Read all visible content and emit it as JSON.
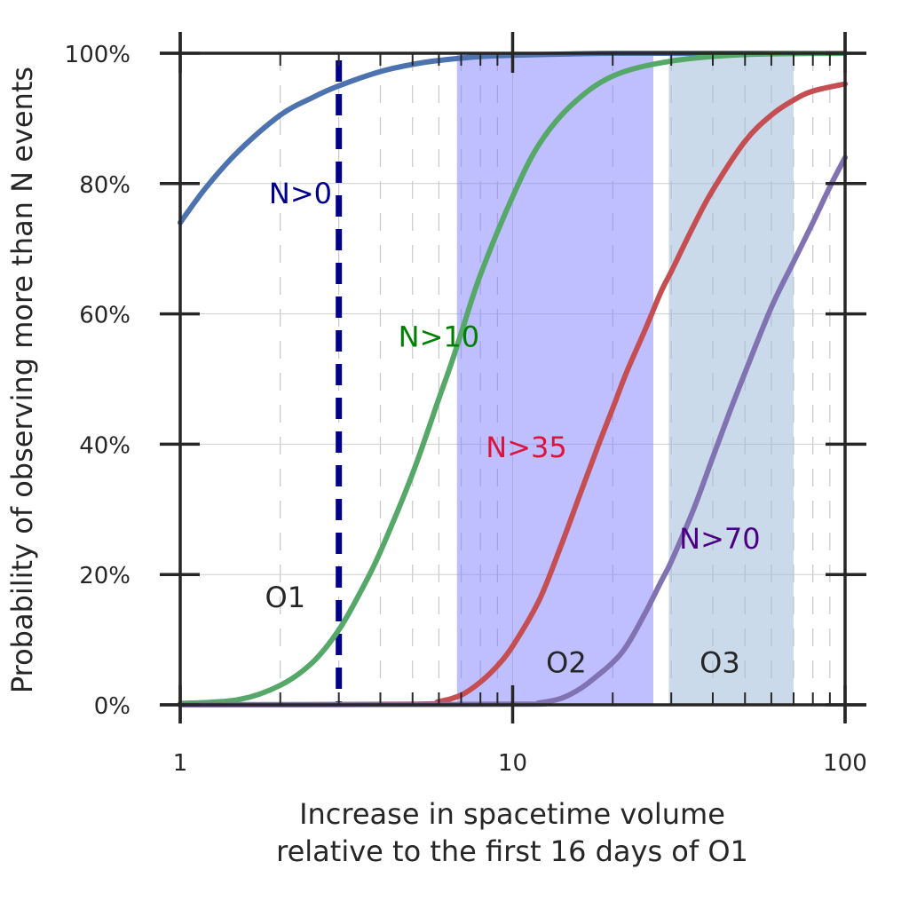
{
  "chart_data": {
    "type": "line",
    "xscale": "log",
    "xlim": [
      1,
      100
    ],
    "ylim": [
      0,
      100
    ],
    "xticks": [
      1,
      10,
      100
    ],
    "xtick_labels": [
      "1",
      "10",
      "100"
    ],
    "yticks": [
      0,
      20,
      40,
      60,
      80,
      100
    ],
    "ytick_labels": [
      "0%",
      "20%",
      "40%",
      "60%",
      "80%",
      "100%"
    ],
    "xlabel_line1": "Increase in spacetime volume",
    "xlabel_line2": "relative to the first 16 days of O1",
    "ylabel": "Probability of observing more than N events",
    "grid": "horizontal major lines, dashed vertical minor lines",
    "series": [
      {
        "name": "N>0",
        "color": "#4c72b0",
        "label_color": "#00008b",
        "label_at": [
          2.3,
          77
        ],
        "x": [
          1,
          1.2,
          1.5,
          2,
          2.5,
          3,
          4,
          5,
          6,
          8,
          10,
          15,
          20,
          30,
          50,
          100
        ],
        "y": [
          74,
          79.5,
          85,
          90.5,
          93.2,
          95,
          97.2,
          98.3,
          98.9,
          99.5,
          99.7,
          99.9,
          100,
          100,
          100,
          100
        ]
      },
      {
        "name": "N>10",
        "color": "#55a868",
        "label_color": "#008000",
        "label_at": [
          6.0,
          55
        ],
        "x": [
          1,
          1.5,
          2,
          2.5,
          3,
          3.5,
          4,
          5,
          6,
          6.5,
          7,
          8,
          10,
          12,
          15,
          20,
          30,
          50,
          100
        ],
        "y": [
          0.2,
          0.8,
          3,
          6.5,
          11.5,
          17.5,
          23.5,
          35.5,
          47,
          52,
          57,
          66,
          78,
          86,
          92,
          96.5,
          98.8,
          99.8,
          100
        ]
      },
      {
        "name": "N>35",
        "color": "#c44e52",
        "label_color": "#dc143c",
        "label_at": [
          11.0,
          38
        ],
        "x": [
          1,
          5,
          6,
          7,
          8,
          9,
          10,
          12,
          14,
          16,
          18,
          20,
          22,
          25,
          28,
          30,
          35,
          40,
          50,
          60,
          70,
          80,
          100
        ],
        "y": [
          0,
          0.1,
          0.5,
          1.5,
          3.5,
          6,
          9,
          16,
          24.5,
          32.5,
          39.5,
          45.5,
          51,
          57.5,
          63.5,
          66.5,
          73.5,
          79,
          86.5,
          90.5,
          92.8,
          94.2,
          95.3
        ]
      },
      {
        "name": "N>70",
        "color": "#8172b2",
        "label_color": "#4b0082",
        "label_at": [
          42.0,
          24
        ],
        "x": [
          1,
          10,
          12,
          14,
          16,
          18,
          20,
          22,
          25,
          28,
          30,
          35,
          40,
          45,
          50,
          60,
          70,
          80,
          90,
          100
        ],
        "y": [
          0,
          0.1,
          0.3,
          1,
          2.5,
          4.5,
          6.5,
          9,
          14,
          19,
          22,
          30,
          38,
          45,
          51,
          61,
          68,
          74,
          79.5,
          84
        ]
      }
    ],
    "vlines": [
      {
        "x": 3,
        "color": "#00008b",
        "style": "dashed"
      }
    ],
    "regions": [
      {
        "x0": 6.8,
        "x1": 26.5,
        "color": "#8080ff",
        "opacity": 0.5
      },
      {
        "x0": 29.5,
        "x1": 70,
        "color": "#a0bcd8",
        "opacity": 0.55
      }
    ],
    "annotations": [
      {
        "text": "O1",
        "x": 2.07,
        "y": 15
      },
      {
        "text": "O2",
        "x": 14.5,
        "y": 5
      },
      {
        "text": "O3",
        "x": 42.0,
        "y": 5
      }
    ]
  }
}
